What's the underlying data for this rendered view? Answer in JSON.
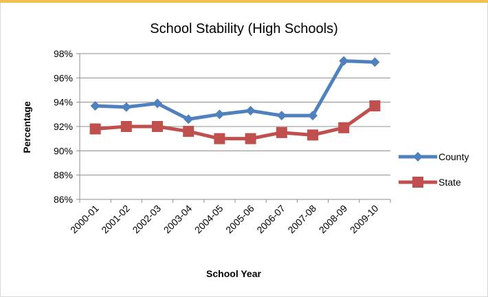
{
  "chart_data": {
    "type": "line",
    "title": "School Stability (High Schools)",
    "xlabel": "School Year",
    "ylabel": "Percentage",
    "categories": [
      "2000-01",
      "2001-02",
      "2002-03",
      "2003-04",
      "2004-05",
      "2005-06",
      "2006-07",
      "2007-08",
      "2008-09",
      "2009-10"
    ],
    "ylim": [
      86,
      98
    ],
    "yticks": [
      86,
      88,
      90,
      92,
      94,
      96,
      98
    ],
    "ytick_labels": [
      "86%",
      "88%",
      "90%",
      "92%",
      "94%",
      "96%",
      "98%"
    ],
    "grid": true,
    "legend_position": "right",
    "series": [
      {
        "name": "County",
        "color": "#4f81bd",
        "marker": "diamond",
        "values": [
          93.7,
          93.6,
          93.9,
          92.6,
          93.0,
          93.3,
          92.9,
          92.9,
          97.4,
          97.3
        ]
      },
      {
        "name": "State",
        "color": "#c0504d",
        "marker": "square",
        "values": [
          91.8,
          92.0,
          92.0,
          91.6,
          91.0,
          91.0,
          91.5,
          91.3,
          91.9,
          93.7
        ]
      }
    ]
  }
}
